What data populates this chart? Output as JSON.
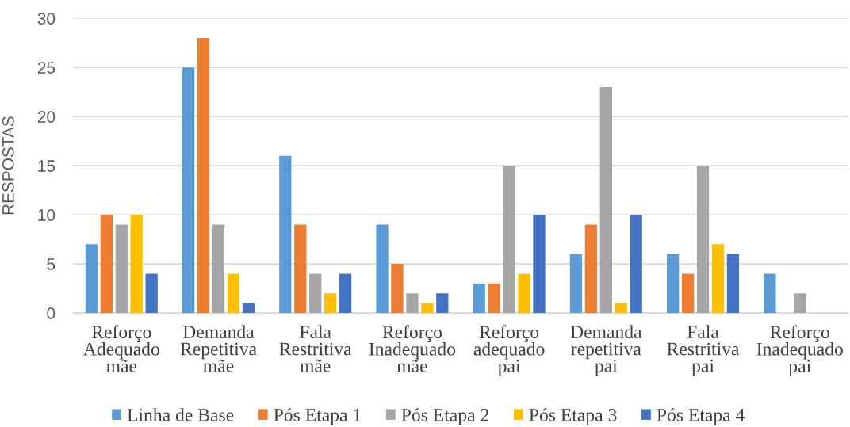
{
  "chart_data": {
    "type": "bar",
    "ylabel": "RESPOSTAS",
    "categories": [
      "Reforço\nAdequado\nmãe",
      "Demanda\nRepetitiva\nmãe",
      "Fala\nRestritiva\nmãe",
      "Reforço\nInadequado\nmãe",
      "Reforço\nadequado\npai",
      "Demanda\nrepetitiva\npai",
      "Fala\nRestritiva\npai",
      "Reforço\nInadequado\npai"
    ],
    "series": [
      {
        "name": "Linha de Base",
        "color": "#5b9bd5",
        "values": [
          7,
          25,
          16,
          9,
          3,
          6,
          6,
          4
        ]
      },
      {
        "name": "Pós Etapa 1",
        "color": "#ed7d31",
        "values": [
          10,
          28,
          9,
          5,
          3,
          9,
          4,
          0
        ]
      },
      {
        "name": "Pós Etapa 2",
        "color": "#a5a5a5",
        "values": [
          9,
          9,
          4,
          2,
          15,
          23,
          15,
          2
        ]
      },
      {
        "name": "Pós Etapa 3",
        "color": "#ffc000",
        "values": [
          10,
          4,
          2,
          1,
          4,
          1,
          7,
          0
        ]
      },
      {
        "name": "Pós Etapa 4",
        "color": "#4472c4",
        "values": [
          4,
          1,
          4,
          2,
          10,
          10,
          6,
          0
        ]
      }
    ],
    "ylim": [
      0,
      30
    ],
    "yticks": [
      0,
      5,
      10,
      15,
      20,
      25,
      30
    ],
    "grid": "y",
    "legend": "bottom"
  }
}
